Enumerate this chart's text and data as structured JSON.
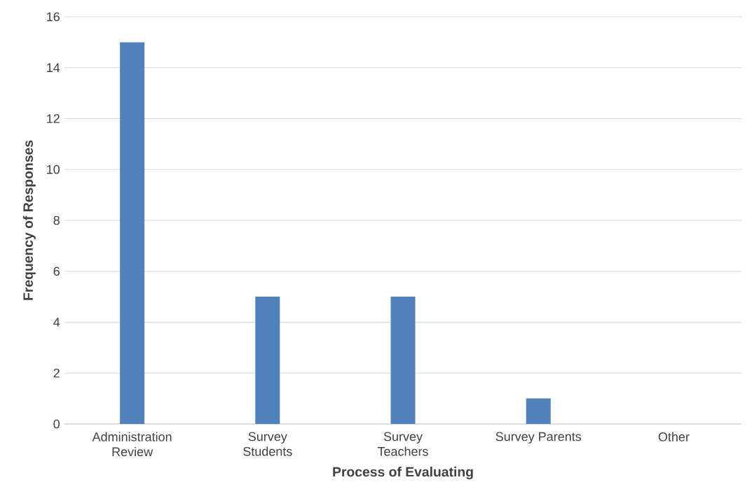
{
  "chart_data": {
    "type": "bar",
    "xlabel": "Process of Evaluating",
    "ylabel": "Frequency of Responses",
    "categories": [
      "Administration Review",
      "Survey Students",
      "Survey Teachers",
      "Survey Parents",
      "Other"
    ],
    "values": [
      15,
      5,
      5,
      1,
      0
    ],
    "color": "#4f81bd",
    "ylim": [
      0,
      16
    ],
    "yticks": [
      0,
      2,
      4,
      6,
      8,
      10,
      12,
      14,
      16
    ],
    "grid": "y"
  }
}
